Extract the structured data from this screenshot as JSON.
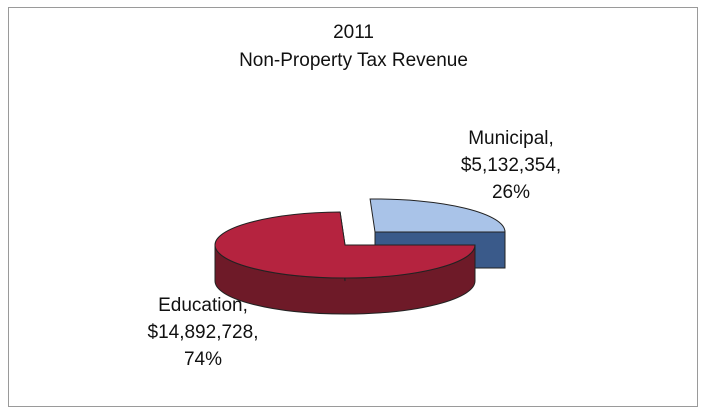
{
  "chart_data": {
    "type": "pie",
    "style": "3d-exploded",
    "title_line1": "2011",
    "title_line2": "Non-Property Tax Revenue",
    "slices": [
      {
        "category": "Municipal",
        "value": "$5,132,354",
        "percent": "26%",
        "fraction": 0.256,
        "top_color": "#a9c3e8",
        "side_color": "#3a5a8a"
      },
      {
        "category": "Education",
        "value": "$14,892,728",
        "percent": "74%",
        "fraction": 0.744,
        "top_color": "#b5233f",
        "side_color": "#6e1a28"
      }
    ],
    "legend": "none"
  }
}
